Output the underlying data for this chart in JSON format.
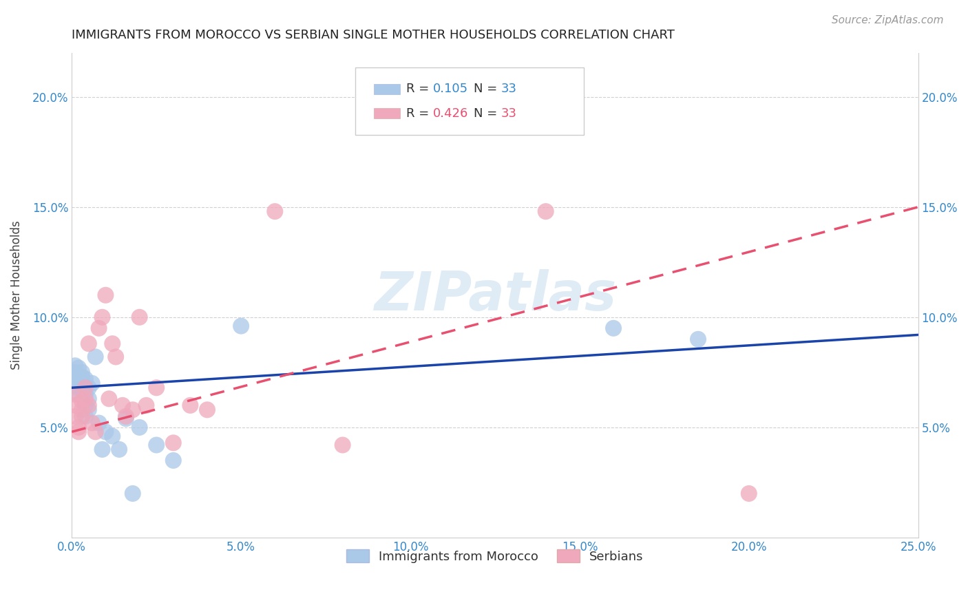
{
  "title": "IMMIGRANTS FROM MOROCCO VS SERBIAN SINGLE MOTHER HOUSEHOLDS CORRELATION CHART",
  "source": "Source: ZipAtlas.com",
  "ylabel": "Single Mother Households",
  "xlim": [
    0.0,
    0.25
  ],
  "ylim": [
    0.0,
    0.22
  ],
  "xticks": [
    0.0,
    0.05,
    0.1,
    0.15,
    0.2,
    0.25
  ],
  "yticks": [
    0.05,
    0.1,
    0.15,
    0.2
  ],
  "xticklabels": [
    "0.0%",
    "5.0%",
    "10.0%",
    "15.0%",
    "20.0%",
    "25.0%"
  ],
  "yticklabels_left": [
    "5.0%",
    "10.0%",
    "15.0%",
    "20.0%"
  ],
  "yticklabels_right": [
    "5.0%",
    "10.0%",
    "15.0%",
    "20.0%"
  ],
  "grid_color": "#d0d0d0",
  "background_color": "#ffffff",
  "watermark": "ZIPatlas",
  "morocco_color": "#aac8e8",
  "serbian_color": "#f0a8bc",
  "morocco_line_color": "#1a44aa",
  "serbian_line_color": "#e85070",
  "legend_r_morocco": "R = 0.105",
  "legend_n_morocco": "N = 33",
  "legend_r_serbian": "R = 0.426",
  "legend_n_serbian": "N = 33",
  "morocco_x": [
    0.001,
    0.001,
    0.001,
    0.002,
    0.002,
    0.002,
    0.002,
    0.003,
    0.003,
    0.003,
    0.003,
    0.004,
    0.004,
    0.004,
    0.004,
    0.005,
    0.005,
    0.005,
    0.006,
    0.007,
    0.008,
    0.009,
    0.01,
    0.012,
    0.014,
    0.016,
    0.018,
    0.02,
    0.025,
    0.03,
    0.05,
    0.16,
    0.185
  ],
  "morocco_y": [
    0.075,
    0.078,
    0.072,
    0.073,
    0.077,
    0.068,
    0.065,
    0.073,
    0.07,
    0.068,
    0.075,
    0.072,
    0.065,
    0.06,
    0.055,
    0.068,
    0.063,
    0.058,
    0.07,
    0.082,
    0.052,
    0.04,
    0.048,
    0.046,
    0.04,
    0.054,
    0.02,
    0.05,
    0.042,
    0.035,
    0.096,
    0.095,
    0.09
  ],
  "serbian_x": [
    0.001,
    0.001,
    0.001,
    0.002,
    0.002,
    0.003,
    0.003,
    0.003,
    0.004,
    0.004,
    0.005,
    0.005,
    0.006,
    0.007,
    0.008,
    0.009,
    0.01,
    0.011,
    0.012,
    0.013,
    0.015,
    0.016,
    0.018,
    0.02,
    0.022,
    0.025,
    0.03,
    0.035,
    0.04,
    0.06,
    0.08,
    0.14,
    0.2
  ],
  "serbian_y": [
    0.055,
    0.065,
    0.06,
    0.05,
    0.048,
    0.062,
    0.058,
    0.055,
    0.068,
    0.063,
    0.088,
    0.06,
    0.052,
    0.048,
    0.095,
    0.1,
    0.11,
    0.063,
    0.088,
    0.082,
    0.06,
    0.055,
    0.058,
    0.1,
    0.06,
    0.068,
    0.043,
    0.06,
    0.058,
    0.148,
    0.042,
    0.148,
    0.02
  ],
  "morocco_trend_x": [
    0.0,
    0.25
  ],
  "morocco_trend_y": [
    0.068,
    0.092
  ],
  "serbian_trend_x": [
    0.0,
    0.25
  ],
  "serbian_trend_y": [
    0.048,
    0.15
  ]
}
